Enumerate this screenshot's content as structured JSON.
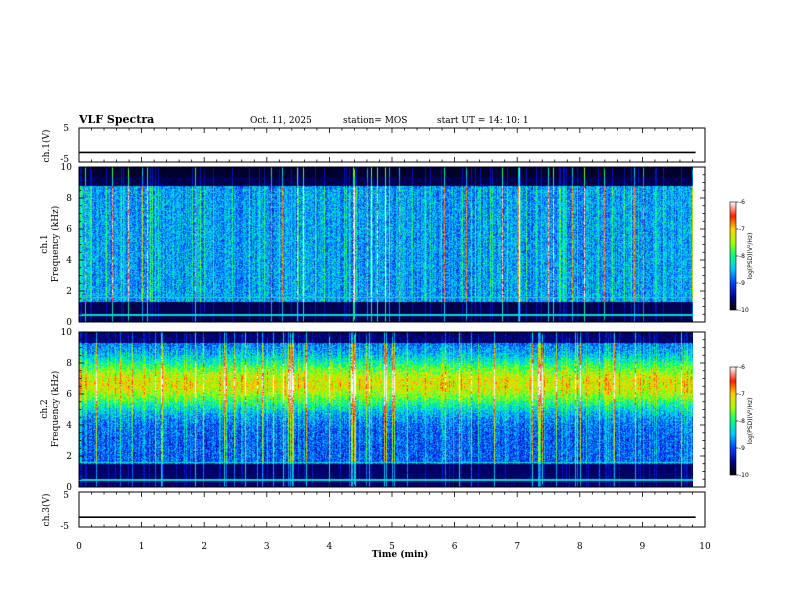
{
  "header": {
    "title": "VLF Spectra",
    "date": "Oct. 11, 2025",
    "station": "station= MOS",
    "start": "start  UT  =   14: 10: 1"
  },
  "chart_data": {
    "type": "heatmap",
    "xlabel": "Time  (min)",
    "xlim": [
      0,
      10
    ],
    "xticks": [
      "0",
      "1",
      "2",
      "3",
      "4",
      "5",
      "6",
      "7",
      "8",
      "9",
      "10"
    ],
    "data_end_min": 9.85,
    "panels": [
      {
        "id": "ch1-waveform",
        "type": "line",
        "ylabel": "ch.1(V)",
        "ylim": [
          -5,
          5
        ],
        "yticks": [
          "5",
          "-5"
        ],
        "level": -2.2
      },
      {
        "id": "ch1-spectrogram",
        "type": "heatmap",
        "ylabel": "Frequency (kHz)",
        "channel": "ch.1",
        "ylim": [
          0,
          10
        ],
        "yticks": [
          "0",
          "2",
          "4",
          "6",
          "8",
          "10"
        ],
        "colorbar": {
          "label": "log(PSD)(V²/Hz)",
          "range": [
            -10,
            -6
          ],
          "ticks": [
            "-6",
            "-7",
            "-8",
            "-9",
            "-10"
          ]
        }
      },
      {
        "id": "ch2-spectrogram",
        "type": "heatmap",
        "ylabel": "Frequency (kHz)",
        "channel": "ch.2",
        "ylim": [
          0,
          10
        ],
        "yticks": [
          "0",
          "2",
          "4",
          "6",
          "8",
          "10"
        ],
        "colorbar": {
          "label": "log(PSD)(V²/Hz)",
          "range": [
            -10,
            -6
          ],
          "ticks": [
            "-6",
            "-7",
            "-8",
            "-9",
            "-10"
          ]
        }
      },
      {
        "id": "ch3-waveform",
        "type": "line",
        "ylabel": "ch.3(V)",
        "ylim": [
          -5,
          5
        ],
        "yticks": [
          "5",
          "-5"
        ],
        "level": -2.2
      }
    ]
  }
}
